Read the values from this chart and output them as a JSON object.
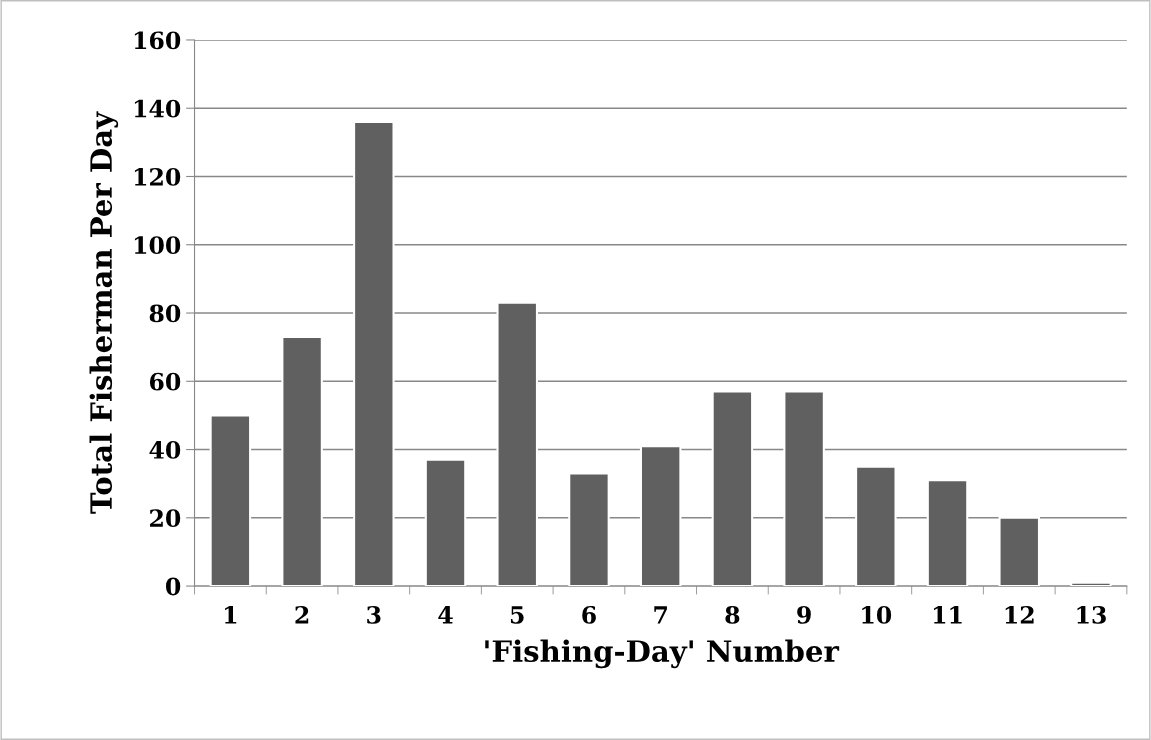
{
  "chart_data": {
    "type": "bar",
    "xlabel": "'Fishing-Day' Number",
    "ylabel": "Total Fisherman Per Day",
    "categories": [
      "1",
      "2",
      "3",
      "4",
      "5",
      "6",
      "7",
      "8",
      "9",
      "10",
      "11",
      "12",
      "13"
    ],
    "values": [
      50,
      73,
      136,
      37,
      83,
      33,
      41,
      57,
      57,
      35,
      31,
      20,
      1
    ],
    "color": "#606060",
    "ylim": [
      0,
      160
    ],
    "yticks": [
      0,
      20,
      40,
      60,
      80,
      100,
      120,
      140,
      160
    ],
    "grid": "y",
    "legend": false
  }
}
